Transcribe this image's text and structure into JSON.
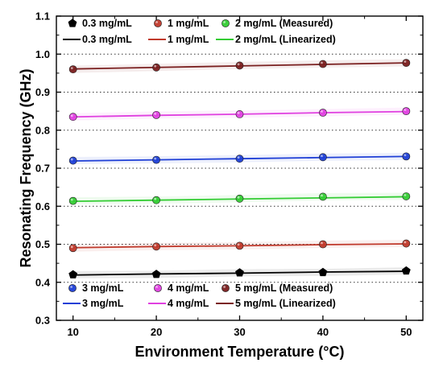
{
  "chart_data": {
    "type": "line",
    "xlabel": "Environment Temperature (°C)",
    "ylabel": "Resonating Frequency (GHz)",
    "xlim": [
      8,
      52
    ],
    "ylim": [
      0.3,
      1.1
    ],
    "x_ticks": [
      10,
      20,
      30,
      40,
      50
    ],
    "y_ticks": [
      0.3,
      0.4,
      0.5,
      0.6,
      0.7,
      0.8,
      0.9,
      1.0,
      1.1
    ],
    "x_tick_labels": [
      "10",
      "20",
      "30",
      "40",
      "50"
    ],
    "y_tick_labels": [
      "0.3",
      "0.4",
      "0.5",
      "0.6",
      "0.7",
      "0.8",
      "0.9",
      "1.0",
      "1.1"
    ],
    "grid": "horizontal-dotted",
    "x": [
      10,
      20,
      30,
      40,
      50
    ],
    "series": [
      {
        "name": "0.3 mg/mL",
        "color": "#000000",
        "marker": "pentagon",
        "measured": [
          0.42,
          0.421,
          0.425,
          0.426,
          0.43
        ],
        "linearized": [
          0.419,
          0.422,
          0.424,
          0.427,
          0.429
        ]
      },
      {
        "name": "1 mg/mL",
        "color": "#c0392b",
        "marker": "circle",
        "measured": [
          0.49,
          0.494,
          0.496,
          0.5,
          0.502
        ],
        "linearized": [
          0.491,
          0.494,
          0.496,
          0.499,
          0.501
        ]
      },
      {
        "name": "2 mg/mL",
        "color": "#33cc33",
        "marker": "circle",
        "measured": [
          0.614,
          0.616,
          0.62,
          0.625,
          0.626
        ],
        "linearized": [
          0.613,
          0.616,
          0.619,
          0.622,
          0.625
        ]
      },
      {
        "name": "3 mg/mL",
        "color": "#1f3fd6",
        "marker": "circle",
        "measured": [
          0.72,
          0.722,
          0.725,
          0.729,
          0.731
        ],
        "linearized": [
          0.719,
          0.722,
          0.725,
          0.728,
          0.731
        ]
      },
      {
        "name": "4 mg/mL",
        "color": "#e040e0",
        "marker": "circle",
        "measured": [
          0.835,
          0.84,
          0.842,
          0.846,
          0.85
        ],
        "linearized": [
          0.835,
          0.839,
          0.842,
          0.846,
          0.849
        ]
      },
      {
        "name": "5 mg/mL",
        "color": "#7a1f1f",
        "marker": "circle",
        "measured": [
          0.96,
          0.965,
          0.97,
          0.974,
          0.977
        ],
        "linearized": [
          0.961,
          0.965,
          0.969,
          0.973,
          0.977
        ]
      }
    ],
    "legends": [
      {
        "placement": "top-left",
        "measured_row": [
          {
            "label": "0.3 mg/mL",
            "series": 0
          },
          {
            "label": "1 mg/mL",
            "series": 1
          },
          {
            "label": "2 mg/mL (Measured)",
            "series": 2
          }
        ],
        "linearized_row": [
          {
            "label": "0.3 mg/mL",
            "series": 0
          },
          {
            "label": "1 mg/mL",
            "series": 1
          },
          {
            "label": "2 mg/mL (Linearized)",
            "series": 2
          }
        ]
      },
      {
        "placement": "bottom-left",
        "measured_row": [
          {
            "label": "3 mg/mL",
            "series": 3
          },
          {
            "label": "4 mg/mL",
            "series": 4
          },
          {
            "label": "5 mg/mL (Measured)",
            "series": 5
          }
        ],
        "linearized_row": [
          {
            "label": "3 mg/mL",
            "series": 3
          },
          {
            "label": "4 mg/mL",
            "series": 4
          },
          {
            "label": "5 mg/mL (Linearized)",
            "series": 5
          }
        ]
      }
    ]
  }
}
